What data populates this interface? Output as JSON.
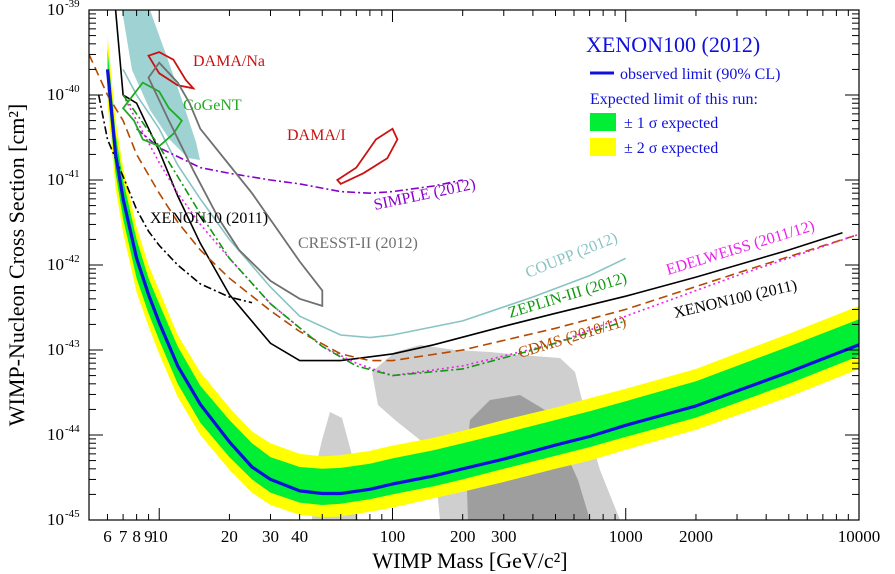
{
  "chart_data": {
    "type": "line",
    "title": "XENON100 (2012)",
    "xlabel": "WIMP Mass [GeV/c²]",
    "ylabel": "WIMP-Nucleon Cross Section [cm²]",
    "x_scale": "log",
    "y_scale": "log",
    "xlim": [
      5,
      10000
    ],
    "ylim": [
      1e-45,
      1e-39
    ],
    "x_ticks": [
      {
        "value": 6,
        "label": "6"
      },
      {
        "value": 7,
        "label": "7"
      },
      {
        "value": 8,
        "label": "8"
      },
      {
        "value": 9,
        "label": "9"
      },
      {
        "value": 10,
        "label": "10"
      },
      {
        "value": 20,
        "label": "20"
      },
      {
        "value": 30,
        "label": "30"
      },
      {
        "value": 40,
        "label": "40"
      },
      {
        "value": 100,
        "label": "100"
      },
      {
        "value": 200,
        "label": "200"
      },
      {
        "value": 300,
        "label": "300"
      },
      {
        "value": 1000,
        "label": "1000"
      },
      {
        "value": 2000,
        "label": "2000"
      },
      {
        "value": 10000,
        "label": "10000"
      }
    ],
    "y_ticks": [
      {
        "exp": -39,
        "label": "10",
        "sup": "-39"
      },
      {
        "exp": -40,
        "label": "10",
        "sup": "-40"
      },
      {
        "exp": -41,
        "label": "10",
        "sup": "-41"
      },
      {
        "exp": -42,
        "label": "10",
        "sup": "-42"
      },
      {
        "exp": -43,
        "label": "10",
        "sup": "-43"
      },
      {
        "exp": -44,
        "label": "10",
        "sup": "-44"
      },
      {
        "exp": -45,
        "label": "10",
        "sup": "-45"
      }
    ],
    "legend": {
      "title": "XENON100 (2012)",
      "observed": "observed limit (90% CL)",
      "expected_header": "Expected limit of this run:",
      "band1": "± 1 σ expected",
      "band2": "± 2 σ expected"
    },
    "colors": {
      "observed": "#1010dd",
      "band1": "#00ee33",
      "band2": "#ffff00",
      "xenon100_2011": "#000000",
      "xenon10_2011": "#000000",
      "cdms": "#b34a00",
      "edelweiss": "#ee22ee",
      "zeplin": "#119911",
      "coupp": "#88c4c4",
      "simple": "#8800cc",
      "cresst": "#707070",
      "dama": "#cc1111",
      "cogent": "#22aa22",
      "dama_region": "#7fc4c4",
      "theory_light": "#cfcfcf",
      "theory_dark": "#9e9e9e"
    },
    "observed": {
      "name": "XENON100 (2012) observed limit (90% CL)",
      "x": [
        6,
        6.5,
        7,
        8,
        9,
        10,
        12,
        15,
        20,
        25,
        30,
        40,
        50,
        60,
        80,
        100,
        150,
        200,
        300,
        500,
        700,
        1000,
        2000,
        5000,
        10000
      ],
      "y": [
        2e-40,
        2e-41,
        6e-42,
        1.2e-42,
        4.5e-43,
        2.1e-43,
        6.5e-44,
        2.3e-44,
        8.3e-45,
        4.2e-45,
        3e-45,
        2.2e-45,
        2.05e-45,
        2.05e-45,
        2.3e-45,
        2.65e-45,
        3.3e-45,
        4e-45,
        5.2e-45,
        7.6e-45,
        9.6e-45,
        1.3e-44,
        2.2e-44,
        5.5e-44,
        1.15e-43
      ]
    },
    "bands": {
      "x": [
        6,
        6.5,
        7,
        8,
        9,
        10,
        12,
        15,
        20,
        25,
        30,
        40,
        50,
        60,
        80,
        100,
        150,
        200,
        300,
        500,
        700,
        1000,
        2000,
        5000,
        10000
      ],
      "one_sigma_upper": [
        3.5e-40,
        3.5e-41,
        1e-41,
        2e-42,
        7e-43,
        3.5e-43,
        1.1e-43,
        3.8e-44,
        1.5e-44,
        8e-45,
        5.5e-45,
        4.2e-45,
        4e-45,
        4.1e-45,
        4.6e-45,
        5.3e-45,
        6.6e-45,
        8e-45,
        1.05e-44,
        1.5e-44,
        1.9e-44,
        2.5e-44,
        4.3e-44,
        1.1e-43,
        2.3e-43
      ],
      "one_sigma_lower": [
        1.2e-40,
        1.2e-41,
        3.5e-42,
        7e-43,
        2.7e-43,
        1.3e-43,
        4e-44,
        1.4e-44,
        5.5e-45,
        3e-45,
        2.1e-45,
        1.6e-45,
        1.5e-45,
        1.55e-45,
        1.75e-45,
        2e-45,
        2.5e-45,
        3e-45,
        4e-45,
        5.7e-45,
        7.2e-45,
        9.5e-45,
        1.6e-44,
        4e-44,
        8.5e-44
      ],
      "two_sigma_upper": [
        5e-40,
        5e-41,
        1.4e-41,
        2.8e-42,
        1e-42,
        5e-43,
        1.5e-43,
        5.5e-44,
        2.1e-44,
        1.1e-44,
        8e-45,
        6e-45,
        5.6e-45,
        5.8e-45,
        6.5e-45,
        7.5e-45,
        9.3e-45,
        1.12e-44,
        1.5e-44,
        2.1e-44,
        2.7e-44,
        3.5e-44,
        6e-44,
        1.55e-43,
        3.3e-43
      ],
      "two_sigma_lower": [
        8e-41,
        8e-42,
        2.4e-42,
        4.8e-43,
        1.9e-43,
        9e-44,
        2.8e-44,
        1e-44,
        3.9e-45,
        2.1e-45,
        1.5e-45,
        1.15e-45,
        1.08e-45,
        1.1e-45,
        1.25e-45,
        1.4e-45,
        1.8e-45,
        2.15e-45,
        2.8e-45,
        4e-45,
        5e-45,
        6.7e-45,
        1.15e-44,
        2.8e-44,
        6e-44
      ]
    },
    "series": [
      {
        "name": "XENON100 (2011)",
        "key": "xenon100_2011",
        "dash": "solid",
        "x": [
          6.5,
          7,
          8,
          10,
          12,
          15,
          20,
          30,
          40,
          60,
          100,
          150,
          300,
          500,
          1000,
          2000,
          5000,
          8500
        ],
        "y": [
          1e-39,
          1e-40,
          8e-41,
          2.2e-41,
          6.5e-42,
          1.8e-42,
          4.5e-43,
          1.2e-43,
          7.5e-44,
          7.5e-44,
          9e-44,
          1.15e-43,
          1.9e-43,
          2.7e-43,
          4.3e-43,
          7.2e-43,
          1.5e-42,
          2.4e-42
        ]
      },
      {
        "name": "XENON10 (2011)",
        "key": "xenon10_2011",
        "dash": "dashdot",
        "x": [
          5.5,
          6,
          7,
          8,
          9,
          10,
          12,
          15,
          20,
          25
        ],
        "y": [
          1e-40,
          3e-41,
          1.1e-41,
          4.5e-42,
          2.5e-42,
          1.7e-42,
          1e-42,
          6e-43,
          4.2e-43,
          3.6e-43
        ]
      },
      {
        "name": "CDMS (2010/11)",
        "key": "cdms",
        "dash": "dashed",
        "x": [
          5,
          6,
          7,
          8,
          10,
          12,
          15,
          20,
          30,
          40,
          60,
          80,
          100,
          200,
          500,
          1000,
          3000,
          10000
        ],
        "y": [
          3e-40,
          1e-40,
          5e-41,
          2e-41,
          7e-42,
          3.2e-42,
          1.5e-42,
          7e-43,
          2.9e-43,
          1.65e-43,
          9e-44,
          7.5e-44,
          7.5e-44,
          1e-43,
          1.8e-43,
          3e-43,
          8e-43,
          2.3e-42
        ]
      },
      {
        "name": "EDELWEISS (2011/12)",
        "key": "edelweiss",
        "dash": "dotted",
        "x": [
          7,
          8,
          10,
          12,
          15,
          20,
          30,
          50,
          70,
          100,
          200,
          500,
          1000,
          3000,
          10000
        ],
        "y": [
          1e-40,
          5e-41,
          1.6e-41,
          7e-42,
          3e-42,
          1.2e-42,
          3.5e-43,
          1.1e-43,
          7e-44,
          5e-44,
          6.5e-44,
          1.2e-43,
          2.5e-43,
          7.5e-43,
          2.3e-42
        ]
      },
      {
        "name": "ZEPLIN-III (2012)",
        "key": "zeplin",
        "dash": "dashdot",
        "x": [
          7,
          8,
          10,
          12,
          15,
          20,
          30,
          50,
          70,
          100,
          200,
          400,
          700,
          1000
        ],
        "y": [
          1e-40,
          6e-41,
          2.5e-41,
          1.1e-41,
          4e-42,
          1.2e-42,
          3.5e-43,
          1.1e-43,
          6.5e-44,
          5e-44,
          6e-44,
          1e-43,
          1.6e-43,
          2.2e-43
        ]
      },
      {
        "name": "COUPP (2012)",
        "key": "coupp",
        "dash": "solid",
        "x": [
          7,
          8,
          10,
          12,
          15,
          20,
          30,
          40,
          60,
          80,
          100,
          200,
          400,
          700,
          1000
        ],
        "y": [
          2e-40,
          1e-40,
          4e-41,
          1.5e-41,
          6e-42,
          2e-42,
          5.5e-43,
          2.5e-43,
          1.5e-43,
          1.4e-43,
          1.5e-43,
          2.2e-43,
          4.2e-43,
          7.5e-43,
          1.2e-42
        ]
      },
      {
        "name": "SIMPLE (2012)",
        "key": "simple",
        "dash": "dashdot",
        "x": [
          8,
          10,
          15,
          20,
          30,
          40,
          60,
          80,
          100,
          150,
          200
        ],
        "y": [
          4e-41,
          2.4e-41,
          1.4e-41,
          1.2e-41,
          1e-41,
          9e-42,
          7.3e-42,
          7e-42,
          7.3e-42,
          8.5e-42,
          1e-41
        ]
      }
    ],
    "regions": [
      {
        "name": "DAMA/Na",
        "key": "dama",
        "center": [
          10.5,
          2e-40
        ],
        "x": [
          9,
          10,
          11.5,
          13,
          14,
          12,
          10,
          9
        ],
        "y": [
          2.9e-40,
          3.2e-40,
          2.6e-40,
          1.5e-40,
          1.2e-40,
          1.3e-40,
          1.8e-40,
          2.9e-40
        ]
      },
      {
        "name": "DAMA/I",
        "key": "dama",
        "x": [
          58,
          70,
          85,
          100,
          105,
          95,
          75,
          60,
          58
        ],
        "y": [
          1e-41,
          1.4e-41,
          3e-41,
          4e-41,
          3e-41,
          1.8e-41,
          1.2e-41,
          9e-42,
          1e-41
        ]
      },
      {
        "name": "CoGeNT",
        "key": "cogent",
        "x": [
          7,
          8.5,
          10,
          11,
          12.5,
          11.5,
          10,
          8.5,
          7.8,
          7
        ],
        "y": [
          7e-41,
          1.4e-40,
          1.1e-40,
          7e-41,
          5e-41,
          3.5e-41,
          2.5e-41,
          3e-41,
          5e-41,
          7e-41
        ]
      },
      {
        "name": "CRESST-II (2012)",
        "key": "cresst",
        "x": [
          9,
          10,
          12,
          13.5,
          15,
          20,
          25,
          40,
          50,
          50,
          40,
          30,
          22,
          18,
          14,
          11,
          9
        ],
        "y": [
          1.6e-40,
          2.4e-40,
          1.4e-40,
          8e-41,
          4e-41,
          1.5e-41,
          7e-42,
          1.1e-42,
          5e-43,
          3.3e-43,
          4e-43,
          6.5e-43,
          1.5e-42,
          3.5e-42,
          1.3e-41,
          5e-41,
          1.6e-40
        ]
      }
    ],
    "labels": {
      "dama_na": "DAMA/Na",
      "cogent": "CoGeNT",
      "dama_i": "DAMA/I",
      "simple": "SIMPLE (2012)",
      "xenon10": "XENON10 (2011)",
      "cresst": "CRESST-II (2012)",
      "coupp": "COUPP (2012)",
      "edelweiss": "EDELWEISS (2011/12)",
      "zeplin": "ZEPLIN-III (2012)",
      "xenon100_2011": "XENON100 (2011)",
      "cdms": "CDMS (2010/11)"
    }
  }
}
